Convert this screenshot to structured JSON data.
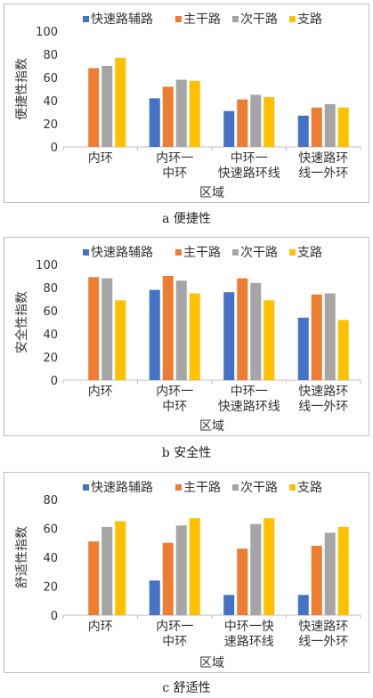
{
  "chart_data": [
    {
      "type": "bar",
      "caption": "a 便捷性",
      "categories": [
        [
          "内环"
        ],
        [
          "内环一",
          "中环"
        ],
        [
          "中环一",
          "快速路环线"
        ],
        [
          "快速路环",
          "线一外环"
        ]
      ],
      "series": [
        {
          "name": "快速路辅路",
          "color": "#4472c4",
          "values": [
            null,
            42,
            31,
            27
          ]
        },
        {
          "name": "主干路",
          "color": "#ed7d31",
          "values": [
            68,
            52,
            41,
            34
          ]
        },
        {
          "name": "次干路",
          "color": "#a5a5a5",
          "values": [
            70,
            58,
            45,
            37
          ]
        },
        {
          "name": "支路",
          "color": "#ffc000",
          "values": [
            77,
            57,
            43,
            34
          ]
        }
      ],
      "xlabel": "区域",
      "ylabel": "便捷性指数",
      "ylim": [
        0,
        100
      ],
      "yticks": [
        0,
        20,
        40,
        60,
        80,
        100
      ],
      "grid": false,
      "legend": "top"
    },
    {
      "type": "bar",
      "caption": "b 安全性",
      "categories": [
        [
          "内环"
        ],
        [
          "内环一",
          "中环"
        ],
        [
          "中环一",
          "快速路环线"
        ],
        [
          "快速路环",
          "线一外环"
        ]
      ],
      "series": [
        {
          "name": "快速路辅路",
          "color": "#4472c4",
          "values": [
            null,
            78,
            76,
            54
          ]
        },
        {
          "name": "主干路",
          "color": "#ed7d31",
          "values": [
            89,
            90,
            88,
            74
          ]
        },
        {
          "name": "次干路",
          "color": "#a5a5a5",
          "values": [
            88,
            86,
            84,
            75
          ]
        },
        {
          "name": "支路",
          "color": "#ffc000",
          "values": [
            69,
            75,
            69,
            52
          ]
        }
      ],
      "xlabel": "区域",
      "ylabel": "安全性指数",
      "ylim": [
        0,
        100
      ],
      "yticks": [
        0,
        20,
        40,
        60,
        80,
        100
      ],
      "grid": false,
      "legend": "top"
    },
    {
      "type": "bar",
      "caption": "c 舒适性",
      "categories": [
        [
          "内环"
        ],
        [
          "内环一",
          "中环"
        ],
        [
          "中环一快",
          "速路环线"
        ],
        [
          "快速路环",
          "线一外环"
        ]
      ],
      "series": [
        {
          "name": "快速路辅路",
          "color": "#4472c4",
          "values": [
            null,
            24,
            14,
            14
          ]
        },
        {
          "name": "主干路",
          "color": "#ed7d31",
          "values": [
            51,
            50,
            46,
            48
          ]
        },
        {
          "name": "次干路",
          "color": "#a5a5a5",
          "values": [
            61,
            62,
            63,
            57
          ]
        },
        {
          "name": "支路",
          "color": "#ffc000",
          "values": [
            65,
            67,
            67,
            61
          ]
        }
      ],
      "xlabel": "区域",
      "ylabel": "舒适性指数",
      "ylim": [
        0,
        80
      ],
      "yticks": [
        0,
        20,
        40,
        60,
        80
      ],
      "grid": false,
      "legend": "top"
    }
  ]
}
